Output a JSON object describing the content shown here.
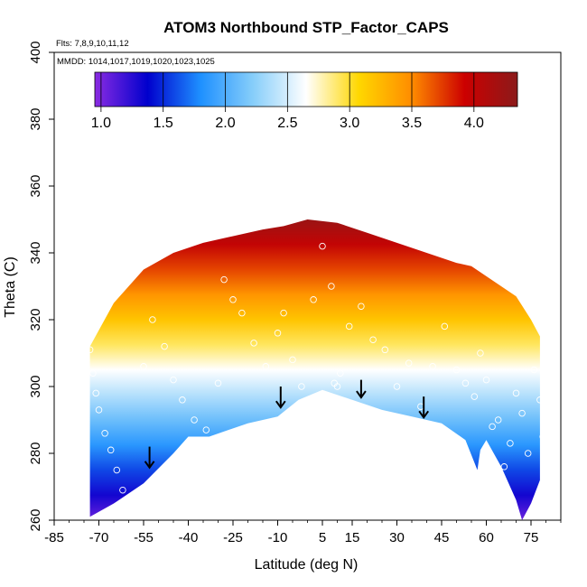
{
  "chart_data": {
    "type": "heatmap",
    "title": "ATOM3 Northbound STP_Factor_CAPS",
    "flights_label": "Flts: 7,8,9,10,11,12",
    "mmdd_label": "MMDD: 1014,1017,1019,1020,1023,1025",
    "xlabel": "Latitude (deg N)",
    "ylabel": "Theta (C)",
    "xlim": [
      -85,
      85
    ],
    "ylim": [
      260,
      400
    ],
    "x_ticks": [
      "-85",
      "-70",
      "-55",
      "-40",
      "-25",
      "-10",
      "5",
      "15",
      "30",
      "45",
      "60",
      "75"
    ],
    "x_tick_values": [
      -85,
      -70,
      -55,
      -40,
      -25,
      -10,
      5,
      15,
      30,
      45,
      60,
      75
    ],
    "y_ticks": [
      "260",
      "280",
      "300",
      "320",
      "340",
      "360",
      "380",
      "400"
    ],
    "y_tick_values": [
      260,
      280,
      300,
      320,
      340,
      360,
      380,
      400
    ],
    "colorbar": {
      "range": [
        0.95,
        4.35
      ],
      "tick_labels": [
        "1.0",
        "1.5",
        "2.0",
        "2.5",
        "3.0",
        "3.5",
        "4.0"
      ],
      "tick_values": [
        1.0,
        1.5,
        2.0,
        2.5,
        3.0,
        3.5,
        4.0
      ],
      "colors": [
        "#8a2be2",
        "#0000cd",
        "#1e90ff",
        "#87cefa",
        "#ffffff",
        "#ffd700",
        "#ff8c00",
        "#cc0000",
        "#8b1a1a"
      ]
    },
    "field": {
      "top_boundary": [
        [
          -73,
          312
        ],
        [
          -65,
          325
        ],
        [
          -55,
          335
        ],
        [
          -45,
          340
        ],
        [
          -35,
          343
        ],
        [
          -25,
          345
        ],
        [
          -15,
          347
        ],
        [
          -8,
          348
        ],
        [
          0,
          350
        ],
        [
          10,
          349
        ],
        [
          20,
          346
        ],
        [
          30,
          343
        ],
        [
          40,
          340
        ],
        [
          50,
          337
        ],
        [
          55,
          336
        ],
        [
          60,
          333
        ],
        [
          65,
          330
        ],
        [
          70,
          327
        ],
        [
          75,
          320
        ],
        [
          78,
          315
        ]
      ],
      "bottom_boundary": [
        [
          -73,
          261
        ],
        [
          -65,
          265
        ],
        [
          -55,
          271
        ],
        [
          -45,
          280
        ],
        [
          -40,
          285
        ],
        [
          -33,
          285
        ],
        [
          -20,
          289
        ],
        [
          -10,
          291
        ],
        [
          -3,
          296
        ],
        [
          5,
          299
        ],
        [
          15,
          296
        ],
        [
          25,
          293
        ],
        [
          35,
          291
        ],
        [
          45,
          289
        ],
        [
          53,
          284
        ],
        [
          57,
          275
        ],
        [
          58,
          281
        ],
        [
          60,
          284
        ],
        [
          65,
          276
        ],
        [
          70,
          266
        ],
        [
          72,
          260
        ],
        [
          75,
          265
        ],
        [
          78,
          272
        ]
      ],
      "value_at_top": 4.25,
      "value_at_bottom": 1.05
    },
    "points": [
      [
        -73,
        311
      ],
      [
        -72,
        304
      ],
      [
        -71,
        298
      ],
      [
        -70,
        293
      ],
      [
        -68,
        286
      ],
      [
        -66,
        281
      ],
      [
        -64,
        275
      ],
      [
        -62,
        269
      ],
      [
        -60,
        262
      ],
      [
        -58,
        266
      ],
      [
        -55,
        306
      ],
      [
        -52,
        320
      ],
      [
        -48,
        312
      ],
      [
        -45,
        302
      ],
      [
        -42,
        296
      ],
      [
        -38,
        290
      ],
      [
        -34,
        287
      ],
      [
        -30,
        301
      ],
      [
        -28,
        332
      ],
      [
        -25,
        326
      ],
      [
        -22,
        322
      ],
      [
        -18,
        313
      ],
      [
        -14,
        306
      ],
      [
        -10,
        316
      ],
      [
        -8,
        322
      ],
      [
        -5,
        308
      ],
      [
        -2,
        300
      ],
      [
        2,
        326
      ],
      [
        5,
        342
      ],
      [
        8,
        330
      ],
      [
        9,
        301
      ],
      [
        10,
        300
      ],
      [
        11,
        304
      ],
      [
        14,
        318
      ],
      [
        18,
        324
      ],
      [
        22,
        314
      ],
      [
        26,
        311
      ],
      [
        30,
        300
      ],
      [
        34,
        307
      ],
      [
        38,
        294
      ],
      [
        42,
        306
      ],
      [
        46,
        318
      ],
      [
        50,
        305
      ],
      [
        53,
        301
      ],
      [
        56,
        297
      ],
      [
        58,
        310
      ],
      [
        60,
        302
      ],
      [
        62,
        288
      ],
      [
        64,
        290
      ],
      [
        66,
        276
      ],
      [
        68,
        283
      ],
      [
        70,
        298
      ],
      [
        72,
        292
      ],
      [
        74,
        280
      ],
      [
        76,
        305
      ],
      [
        78,
        296
      ],
      [
        79,
        285
      ]
    ],
    "arrows": [
      [
        -53,
        282,
        276
      ],
      [
        -9,
        300,
        294
      ],
      [
        18,
        302,
        297
      ],
      [
        39,
        297,
        291
      ]
    ]
  }
}
